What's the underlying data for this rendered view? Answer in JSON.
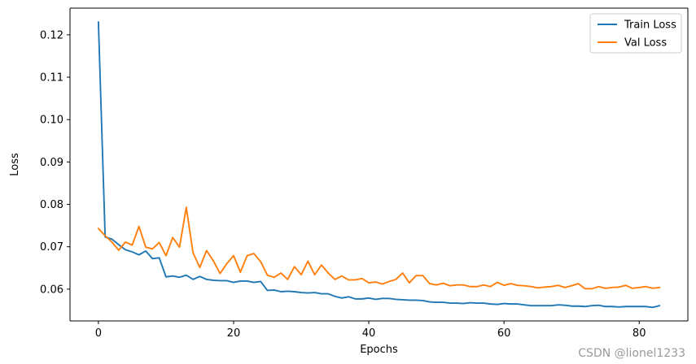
{
  "chart_data": {
    "type": "line",
    "title": "",
    "xlabel": "Epochs",
    "ylabel": "Loss",
    "xlim": [
      -4.2,
      87.2
    ],
    "ylim": [
      0.0525,
      0.1263
    ],
    "xticks": [
      0,
      20,
      40,
      60,
      80
    ],
    "yticks": [
      0.06,
      0.07,
      0.08,
      0.09,
      0.1,
      0.11,
      0.12
    ],
    "ytick_labels": [
      "0.06",
      "0.07",
      "0.08",
      "0.09",
      "0.10",
      "0.11",
      "0.12"
    ],
    "grid": false,
    "legend_position": "upper right",
    "series": [
      {
        "name": "Train Loss",
        "color": "#1f77b4",
        "x": [
          0,
          1,
          2,
          3,
          4,
          5,
          6,
          7,
          8,
          9,
          10,
          11,
          12,
          13,
          14,
          15,
          16,
          17,
          18,
          19,
          20,
          21,
          22,
          23,
          24,
          25,
          26,
          27,
          28,
          29,
          30,
          31,
          32,
          33,
          34,
          35,
          36,
          37,
          38,
          39,
          40,
          41,
          42,
          43,
          44,
          45,
          46,
          47,
          48,
          49,
          50,
          51,
          52,
          53,
          54,
          55,
          56,
          57,
          58,
          59,
          60,
          61,
          62,
          63,
          64,
          65,
          66,
          67,
          68,
          69,
          70,
          71,
          72,
          73,
          74,
          75,
          76,
          77,
          78,
          79,
          80,
          81,
          82,
          83
        ],
        "values": [
          0.123,
          0.0723,
          0.0718,
          0.0705,
          0.0693,
          0.0688,
          0.0681,
          0.069,
          0.0672,
          0.0674,
          0.0629,
          0.0631,
          0.0628,
          0.0633,
          0.0623,
          0.063,
          0.0623,
          0.0621,
          0.062,
          0.062,
          0.0616,
          0.0619,
          0.0619,
          0.0616,
          0.0618,
          0.0597,
          0.0598,
          0.0594,
          0.0595,
          0.0594,
          0.0592,
          0.0591,
          0.0592,
          0.0589,
          0.0589,
          0.0583,
          0.0579,
          0.0582,
          0.0577,
          0.0577,
          0.0579,
          0.0576,
          0.0578,
          0.0578,
          0.0576,
          0.0575,
          0.0574,
          0.0574,
          0.0573,
          0.057,
          0.0569,
          0.0569,
          0.0567,
          0.0567,
          0.0566,
          0.0568,
          0.0567,
          0.0567,
          0.0565,
          0.0564,
          0.0566,
          0.0565,
          0.0565,
          0.0563,
          0.0561,
          0.0561,
          0.0561,
          0.0561,
          0.0563,
          0.0562,
          0.056,
          0.056,
          0.0559,
          0.0561,
          0.0562,
          0.0559,
          0.0559,
          0.0558,
          0.0559,
          0.0559,
          0.0559,
          0.0559,
          0.0557,
          0.0561
        ]
      },
      {
        "name": "Val Loss",
        "color": "#ff7f0e",
        "x": [
          0,
          1,
          2,
          3,
          4,
          5,
          6,
          7,
          8,
          9,
          10,
          11,
          12,
          13,
          14,
          15,
          16,
          17,
          18,
          19,
          20,
          21,
          22,
          23,
          24,
          25,
          26,
          27,
          28,
          29,
          30,
          31,
          32,
          33,
          34,
          35,
          36,
          37,
          38,
          39,
          40,
          41,
          42,
          43,
          44,
          45,
          46,
          47,
          48,
          49,
          50,
          51,
          52,
          53,
          54,
          55,
          56,
          57,
          58,
          59,
          60,
          61,
          62,
          63,
          64,
          65,
          66,
          67,
          68,
          69,
          70,
          71,
          72,
          73,
          74,
          75,
          76,
          77,
          78,
          79,
          80,
          81,
          82,
          83
        ],
        "values": [
          0.0743,
          0.0726,
          0.0711,
          0.0692,
          0.0711,
          0.0704,
          0.0748,
          0.0699,
          0.0695,
          0.071,
          0.0679,
          0.0722,
          0.0699,
          0.0793,
          0.0686,
          0.0651,
          0.0691,
          0.0667,
          0.0637,
          0.066,
          0.0679,
          0.064,
          0.0679,
          0.0684,
          0.0665,
          0.0633,
          0.0628,
          0.0638,
          0.0623,
          0.0653,
          0.0634,
          0.0666,
          0.0634,
          0.0657,
          0.0638,
          0.0623,
          0.0631,
          0.0622,
          0.0622,
          0.0625,
          0.0615,
          0.0617,
          0.0612,
          0.0618,
          0.0623,
          0.0638,
          0.0615,
          0.0632,
          0.0632,
          0.0613,
          0.061,
          0.0614,
          0.0608,
          0.061,
          0.061,
          0.0606,
          0.0606,
          0.061,
          0.0606,
          0.0616,
          0.0609,
          0.0613,
          0.0609,
          0.0608,
          0.0606,
          0.0603,
          0.0605,
          0.0606,
          0.0609,
          0.0604,
          0.0608,
          0.0613,
          0.0601,
          0.0601,
          0.0606,
          0.0602,
          0.0604,
          0.0605,
          0.0609,
          0.0602,
          0.0604,
          0.0606,
          0.0602,
          0.0604
        ]
      }
    ]
  },
  "watermark": "CSDN @lionel1233"
}
